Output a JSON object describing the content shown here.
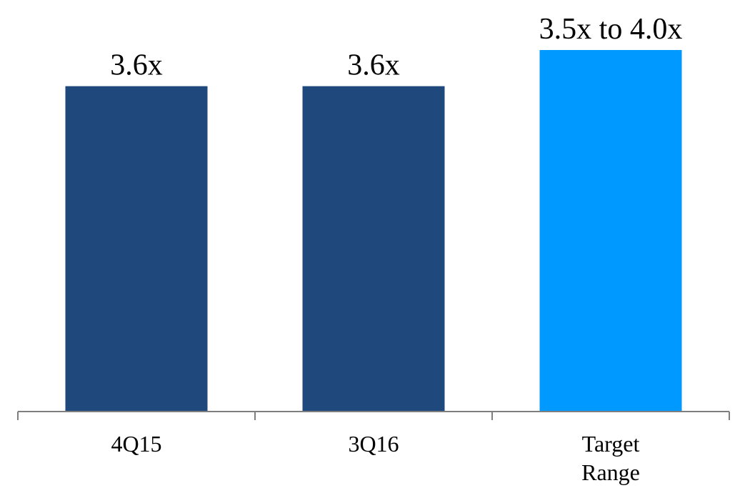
{
  "chart_data": {
    "type": "bar",
    "categories": [
      "4Q15",
      "3Q16",
      "Target Range"
    ],
    "category_lines": [
      [
        "4Q15"
      ],
      [
        "3Q16"
      ],
      [
        "Target",
        "Range"
      ]
    ],
    "values": [
      3.6,
      3.6,
      4.0
    ],
    "data_labels": [
      "3.6x",
      "3.6x",
      "3.5x to 4.0x"
    ],
    "colors": [
      "#1f497d",
      "#1f497d",
      "#0099ff"
    ],
    "axis_color": "#7f7f7f",
    "ylim": [
      0,
      4.0
    ],
    "title": "",
    "xlabel": "",
    "ylabel": "",
    "grid": false,
    "legend": "none"
  }
}
